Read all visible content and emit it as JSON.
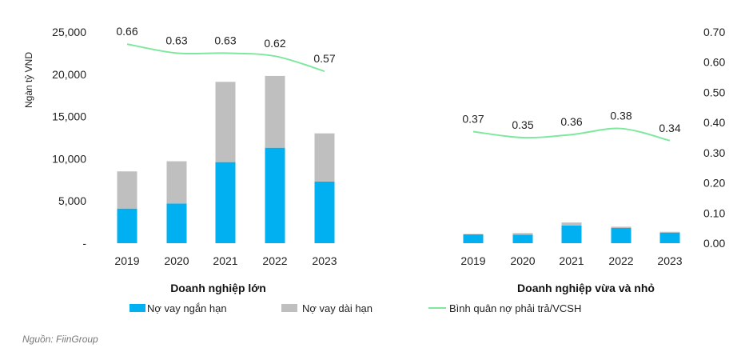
{
  "chart_data": {
    "type": "bar",
    "ylabel": "Ngàn tỷ VND",
    "ylim": [
      0,
      25000
    ],
    "y2lim": [
      0,
      0.7
    ],
    "y_ticks": [
      "-",
      "5,000",
      "10,000",
      "15,000",
      "20,000",
      "25,000"
    ],
    "y2_ticks": [
      "0.00",
      "0.10",
      "0.20",
      "0.30",
      "0.40",
      "0.50",
      "0.60",
      "0.70"
    ],
    "groups": [
      {
        "title": "Doanh nghiệp lớn",
        "categories": [
          "2019",
          "2020",
          "2021",
          "2022",
          "2023"
        ],
        "short_term": [
          4100,
          4700,
          9600,
          11300,
          7300
        ],
        "long_term": [
          4400,
          5000,
          9500,
          8500,
          5700
        ],
        "ratio": [
          0.66,
          0.63,
          0.63,
          0.62,
          0.57
        ],
        "ratio_labels": [
          "0.66",
          "0.63",
          "0.63",
          "0.62",
          "0.57"
        ]
      },
      {
        "title": "Doanh nghiệp vừa và nhỏ",
        "categories": [
          "2019",
          "2020",
          "2021",
          "2022",
          "2023"
        ],
        "short_term": [
          1050,
          1000,
          2100,
          1800,
          1250
        ],
        "long_term": [
          50,
          200,
          350,
          150,
          100
        ],
        "ratio": [
          0.37,
          0.35,
          0.36,
          0.38,
          0.34
        ],
        "ratio_labels": [
          "0.37",
          "0.35",
          "0.36",
          "0.38",
          "0.34"
        ]
      }
    ],
    "series_names": [
      "Nợ vay ngắn hạn",
      "Nợ vay dài hạn",
      "Bình quân nợ phải trả/VCSH"
    ],
    "colors": {
      "short_term": "#00b0f0",
      "long_term": "#bfbfbf",
      "ratio": "#7ee89e"
    },
    "legend": "bottom",
    "grid": false
  },
  "source": "Nguồn: FiinGroup"
}
